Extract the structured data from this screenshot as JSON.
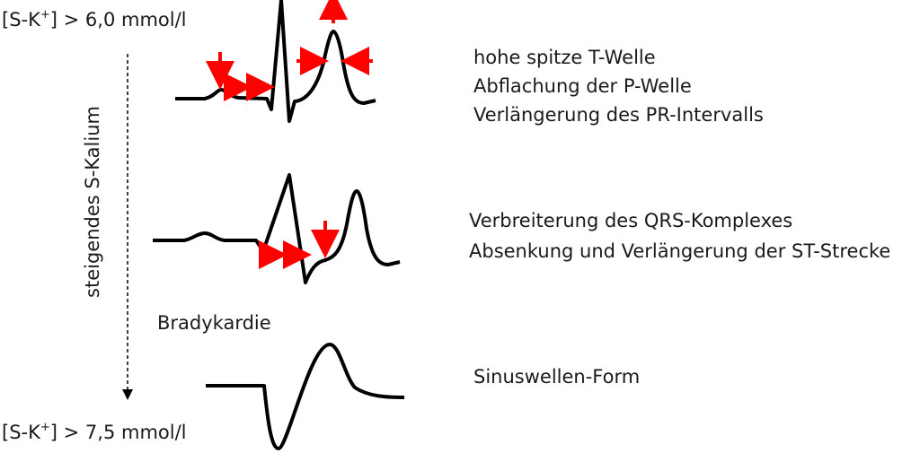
{
  "top_label": {
    "prefix": "[S-K",
    "sup": "+",
    "suffix": "] > 6,0 mmol/l"
  },
  "bottom_label": {
    "prefix": "[S-K",
    "sup": "+",
    "suffix": "] > 7,5 mmol/l"
  },
  "axis_label": "steigendes S-Kalium",
  "bradykardie": "Bradykardie",
  "stage1": [
    "hohe spitze T-Welle",
    "Abflachung der P-Welle",
    "Verlängerung des PR-Intervalls"
  ],
  "stage2": [
    "Verbreiterung des QRS-Komplexes",
    "Absenkung und Verlängerung der ST-Strecke"
  ],
  "stage3": [
    "Sinuswellen-Form"
  ],
  "colors": {
    "arrow": "#ff0000",
    "trace": "#000000"
  }
}
